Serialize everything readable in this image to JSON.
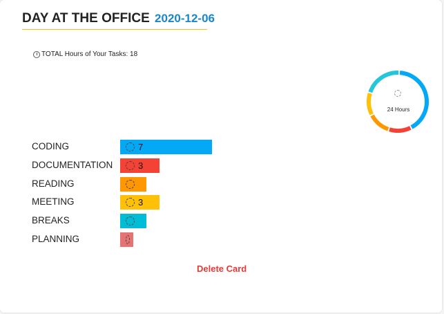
{
  "card": {
    "title": "DAY AT THE OFFICE",
    "date": "2020-12-06",
    "total_hours_text": "TOTAL Hours of Your Tasks: 18",
    "donut_label": "24 Hours",
    "delete_label": "Delete Card"
  },
  "tasks": [
    {
      "name": "CODING",
      "hours": 7,
      "value_label": "7",
      "color": "#03a9f4"
    },
    {
      "name": "DOCUMENTATION",
      "hours": 3,
      "value_label": "3",
      "color": "#f44336"
    },
    {
      "name": "READING",
      "hours": 2,
      "value_label": "",
      "color": "#ff9800"
    },
    {
      "name": "MEETING",
      "hours": 3,
      "value_label": "3",
      "color": "#ffc107"
    },
    {
      "name": "BREAKS",
      "hours": 2,
      "value_label": "",
      "color": "#00bcd4"
    },
    {
      "name": "PLANNING",
      "hours": 1,
      "value_label": "",
      "color": "#e57373"
    }
  ],
  "donut_segments": [
    {
      "hours": 10,
      "color": "#03a9f4"
    },
    {
      "hours": 3,
      "color": "#f44336"
    },
    {
      "hours": 3,
      "color": "#ff9800"
    },
    {
      "hours": 3,
      "color": "#ffc107"
    },
    {
      "hours": 5,
      "color": "#26c6da"
    }
  ]
}
